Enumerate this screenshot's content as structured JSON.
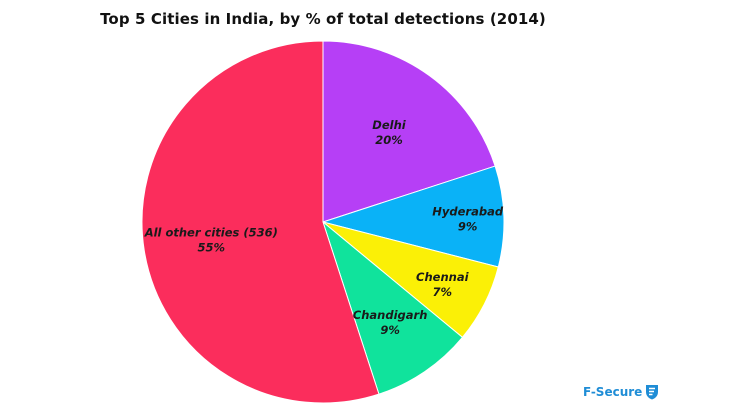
{
  "chart_data": {
    "type": "pie",
    "title": "Top 5 Cities in India, by % of total detections (2014)",
    "start_angle_deg": 0,
    "direction": "clockwise",
    "slices": [
      {
        "label": "Delhi",
        "value": 20,
        "value_label": "20%",
        "color": "#b63ff6"
      },
      {
        "label": "Hyderabad",
        "value": 9,
        "value_label": "9%",
        "color": "#0ab2f7"
      },
      {
        "label": "Chennai",
        "value": 7,
        "value_label": "7%",
        "color": "#fbf006"
      },
      {
        "label": "Chandigarh",
        "value": 9,
        "value_label": "9%",
        "color": "#10e39c"
      },
      {
        "label": "All other cities (536)",
        "value": 55,
        "value_label": "55%",
        "color": "#fb2d5c"
      }
    ]
  },
  "brand": {
    "name": "F-Secure",
    "color": "#1f8dd6",
    "icon": "f-secure-logo-icon"
  }
}
